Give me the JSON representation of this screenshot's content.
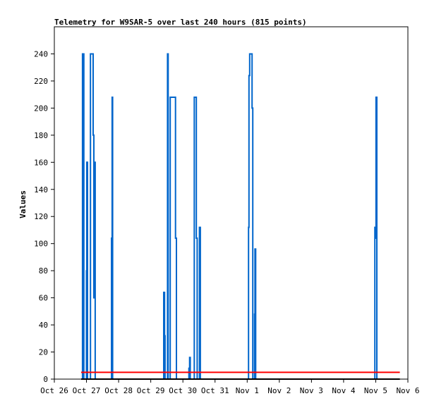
{
  "chart_data": {
    "type": "line",
    "title": "Telemetry for W9SAR-5 over last 240 hours (815 points)",
    "xlabel": "",
    "ylabel": "Values",
    "ylim": [
      0,
      260
    ],
    "xlim": [
      "2025-10-26T00:00",
      "2025-11-06T00:00"
    ],
    "y_ticks": [
      0,
      20,
      40,
      60,
      80,
      100,
      120,
      140,
      160,
      180,
      200,
      220,
      240
    ],
    "x_ticks": [
      {
        "t": "2025-10-26T00:00",
        "label": "Oct 26"
      },
      {
        "t": "2025-10-27T00:00",
        "label": "Oct 27"
      },
      {
        "t": "2025-10-28T00:00",
        "label": "Oct 28"
      },
      {
        "t": "2025-10-29T00:00",
        "label": "Oct 29"
      },
      {
        "t": "2025-10-30T00:00",
        "label": "Oct 30"
      },
      {
        "t": "2025-10-31T00:00",
        "label": "Oct 31"
      },
      {
        "t": "2025-11-01T00:00",
        "label": "Nov 1"
      },
      {
        "t": "2025-11-02T00:00",
        "label": "Nov 2"
      },
      {
        "t": "2025-11-03T00:00",
        "label": "Nov 3"
      },
      {
        "t": "2025-11-04T00:00",
        "label": "Nov 4"
      },
      {
        "t": "2025-11-05T00:00",
        "label": "Nov 5"
      },
      {
        "t": "2025-11-06T00:00",
        "label": "Nov 6"
      }
    ],
    "grid": false,
    "legend": "none",
    "series": [
      {
        "color": "#0066cc",
        "step": true,
        "points": [
          [
            "2025-10-26T20:00",
            0
          ],
          [
            "2025-10-26T21:00",
            240
          ],
          [
            "2025-10-26T22:00",
            0
          ],
          [
            "2025-10-27T00:00",
            80
          ],
          [
            "2025-10-27T00:15",
            160
          ],
          [
            "2025-10-27T00:45",
            0
          ],
          [
            "2025-10-27T03:00",
            240
          ],
          [
            "2025-10-27T05:00",
            180
          ],
          [
            "2025-10-27T05:30",
            60
          ],
          [
            "2025-10-27T06:00",
            160
          ],
          [
            "2025-10-27T06:30",
            0
          ],
          [
            "2025-10-27T18:40",
            104
          ],
          [
            "2025-10-27T19:10",
            208
          ],
          [
            "2025-10-27T19:30",
            0
          ],
          [
            "2025-10-29T09:40",
            64
          ],
          [
            "2025-10-29T10:20",
            32
          ],
          [
            "2025-10-29T10:40",
            0
          ],
          [
            "2025-10-29T12:30",
            240
          ],
          [
            "2025-10-29T13:00",
            0
          ],
          [
            "2025-10-29T14:30",
            208
          ],
          [
            "2025-10-29T18:30",
            104
          ],
          [
            "2025-10-29T19:10",
            0
          ],
          [
            "2025-10-30T04:30",
            8
          ],
          [
            "2025-10-30T05:00",
            16
          ],
          [
            "2025-10-30T05:30",
            0
          ],
          [
            "2025-10-30T08:30",
            208
          ],
          [
            "2025-10-30T10:00",
            104
          ],
          [
            "2025-10-30T10:40",
            0
          ],
          [
            "2025-10-30T12:20",
            112
          ],
          [
            "2025-10-30T13:00",
            0
          ],
          [
            "2025-11-01T01:00",
            112
          ],
          [
            "2025-11-01T01:20",
            224
          ],
          [
            "2025-11-01T01:50",
            240
          ],
          [
            "2025-11-01T03:40",
            200
          ],
          [
            "2025-11-01T04:10",
            0
          ],
          [
            "2025-11-01T05:30",
            48
          ],
          [
            "2025-11-01T05:50",
            96
          ],
          [
            "2025-11-01T06:20",
            0
          ],
          [
            "2025-11-04T23:20",
            112
          ],
          [
            "2025-11-04T23:40",
            104
          ],
          [
            "2025-11-05T00:10",
            208
          ],
          [
            "2025-11-05T00:50",
            0
          ]
        ]
      },
      {
        "color": "#000000",
        "points": [
          [
            "2025-10-26T20:00",
            0
          ],
          [
            "2025-11-05T18:00",
            0
          ]
        ]
      },
      {
        "color": "#ff0000",
        "points": [
          [
            "2025-10-26T20:00",
            5
          ],
          [
            "2025-11-05T18:00",
            5
          ]
        ]
      }
    ]
  }
}
